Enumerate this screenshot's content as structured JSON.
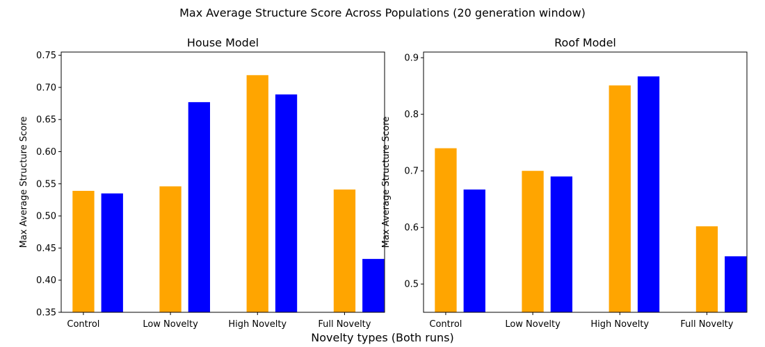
{
  "figure": {
    "suptitle": "Max Average Structure Score Across Populations (20 generation window)",
    "xlabel": "Novelty types (Both runs)"
  },
  "colors": {
    "run1": "#FFA500",
    "run2": "#0000FF",
    "axis": "#000000",
    "background": "#FFFFFF"
  },
  "chart_data": [
    {
      "type": "bar",
      "title": "House Model",
      "xlabel": "",
      "ylabel": "Max Average Structure Score",
      "categories": [
        "Control",
        "Low Novelty",
        "High Novelty",
        "Full Novelty"
      ],
      "series": [
        {
          "color": "#FFA500",
          "values": [
            0.539,
            0.546,
            0.719,
            0.541
          ]
        },
        {
          "color": "#0000FF",
          "values": [
            0.535,
            0.677,
            0.689,
            0.433
          ]
        }
      ],
      "ylim": [
        0.35,
        0.755
      ],
      "yticks": [
        0.35,
        0.4,
        0.45,
        0.5,
        0.55,
        0.6,
        0.65,
        0.7,
        0.75
      ],
      "ytick_labels": [
        "0.35",
        "0.40",
        "0.45",
        "0.50",
        "0.55",
        "0.60",
        "0.65",
        "0.70",
        "0.75"
      ],
      "grid": false,
      "legend": "none"
    },
    {
      "type": "bar",
      "title": "Roof Model",
      "xlabel": "",
      "ylabel": "Max Average Structure Score",
      "categories": [
        "Control",
        "Low Novelty",
        "High Novelty",
        "Full Novelty"
      ],
      "series": [
        {
          "color": "#FFA500",
          "values": [
            0.74,
            0.7,
            0.851,
            0.602
          ]
        },
        {
          "color": "#0000FF",
          "values": [
            0.667,
            0.69,
            0.867,
            0.549
          ]
        }
      ],
      "ylim": [
        0.45,
        0.91
      ],
      "yticks": [
        0.5,
        0.6,
        0.7,
        0.8,
        0.9
      ],
      "ytick_labels": [
        "0.5",
        "0.6",
        "0.7",
        "0.8",
        "0.9"
      ],
      "grid": false,
      "legend": "none"
    }
  ]
}
